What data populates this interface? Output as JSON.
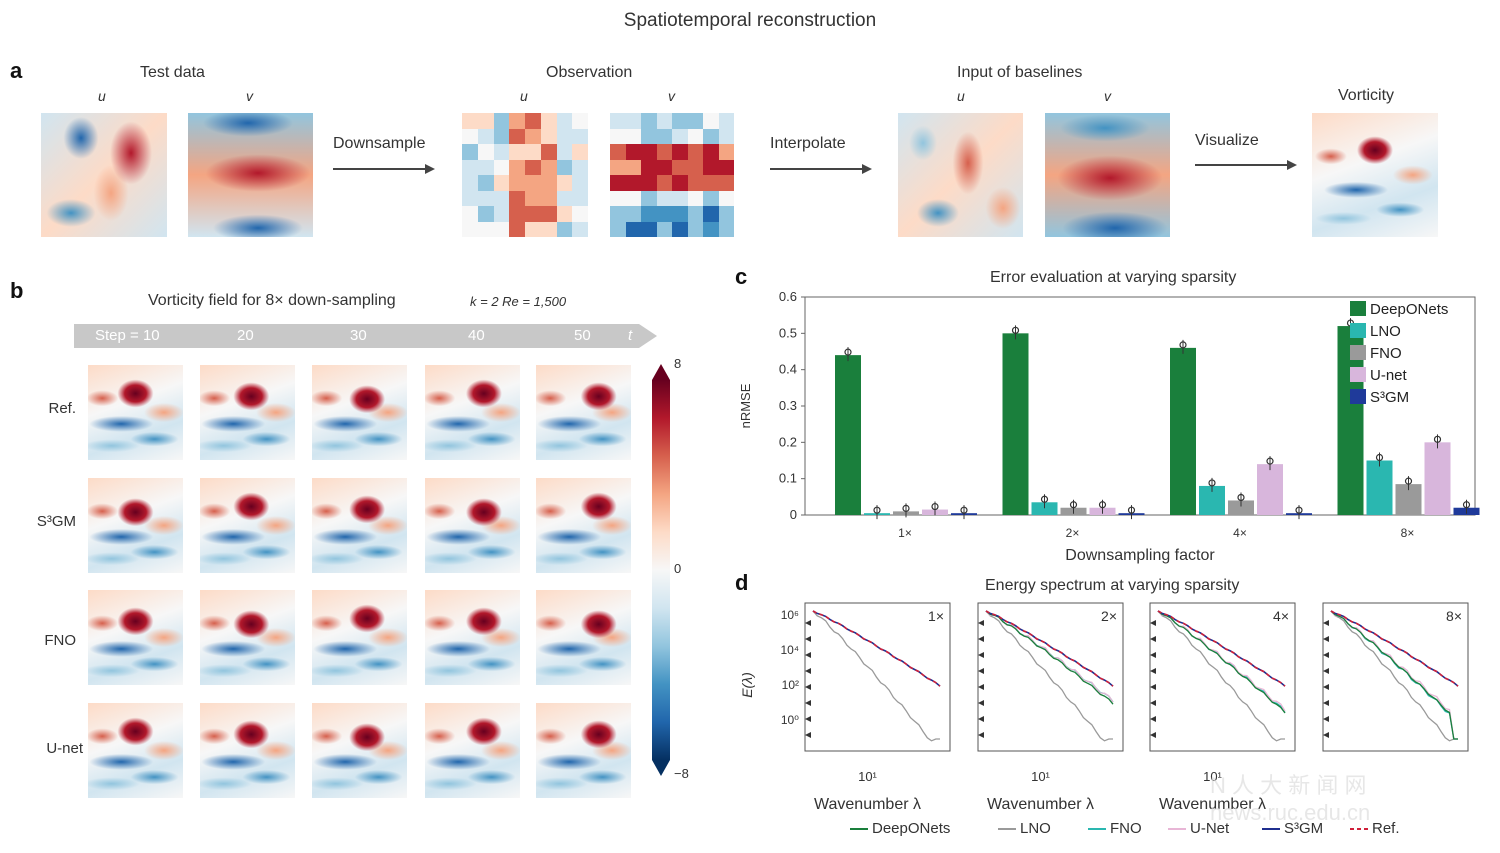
{
  "figure_title": "Spatiotemporal reconstruction",
  "panel_a": {
    "letter": "a",
    "groups": [
      {
        "title": "Test data",
        "sub": [
          "u",
          "v"
        ]
      },
      {
        "title": "Observation",
        "sub": [
          "u",
          "v"
        ]
      },
      {
        "title": "Input of baselines",
        "sub": [
          "u",
          "v"
        ]
      },
      {
        "title": "Vorticity",
        "sub": []
      }
    ],
    "arrows": [
      "Downsample",
      "Interpolate",
      "Visualize"
    ]
  },
  "panel_b": {
    "letter": "b",
    "title": "Vorticity field for 8× down-sampling",
    "params": "k = 2 Re = 1,500",
    "steps": [
      "Step = 10",
      "20",
      "30",
      "40",
      "50",
      "t"
    ],
    "rows": [
      "Ref.",
      "S³GM",
      "FNO",
      "U-net"
    ],
    "colorbar": {
      "max": "8",
      "mid": "0",
      "min": "−8"
    }
  },
  "panel_c": {
    "letter": "c"
  },
  "panel_d": {
    "letter": "d",
    "title": "Energy spectrum at varying sparsity",
    "ylabel": "E(λ)",
    "xlabel": "Wavenumber λ",
    "xtick": "10¹",
    "yticks": [
      "10⁶",
      "10⁴",
      "10²",
      "10⁰"
    ],
    "panels": [
      "1×",
      "2×",
      "4×",
      "8×"
    ],
    "legend": [
      {
        "name": "DeepONets",
        "color": "#1a7f3c",
        "style": "solid"
      },
      {
        "name": "LNO",
        "color": "#9a9a9a",
        "style": "solid"
      },
      {
        "name": "FNO",
        "color": "#2ab7b0",
        "style": "solid"
      },
      {
        "name": "U-Net",
        "color": "#e8b6d6",
        "style": "solid"
      },
      {
        "name": "S³GM",
        "color": "#1f2f8f",
        "style": "solid"
      },
      {
        "name": "Ref.",
        "color": "#d0203a",
        "style": "dashed"
      }
    ]
  },
  "watermark": "N 人 大 新 闻 网 news.ruc.edu.cn",
  "chart_data": {
    "type": "bar",
    "title": "Error evaluation at varying sparsity",
    "xlabel": "Downsampling factor",
    "ylabel": "nRMSE",
    "ylim": [
      0,
      0.6
    ],
    "yticks": [
      "0",
      "0.1",
      "0.2",
      "0.3",
      "0.4",
      "0.5",
      "0.6"
    ],
    "categories": [
      "1×",
      "2×",
      "4×",
      "8×"
    ],
    "legend_position": "top-right",
    "series": [
      {
        "name": "DeepONets",
        "color": "#1a7f3c",
        "values": [
          0.44,
          0.5,
          0.46,
          0.52
        ]
      },
      {
        "name": "LNO",
        "color": "#2ab7b0",
        "values": [
          0.005,
          0.035,
          0.08,
          0.15
        ]
      },
      {
        "name": "FNO",
        "color": "#9a9a9a",
        "values": [
          0.01,
          0.02,
          0.04,
          0.085
        ]
      },
      {
        "name": "U-net",
        "color": "#d8b6dc",
        "values": [
          0.015,
          0.02,
          0.14,
          0.2
        ]
      },
      {
        "name": "S³GM",
        "color": "#1f3a9a",
        "values": [
          0.005,
          0.005,
          0.005,
          0.02
        ]
      }
    ]
  }
}
